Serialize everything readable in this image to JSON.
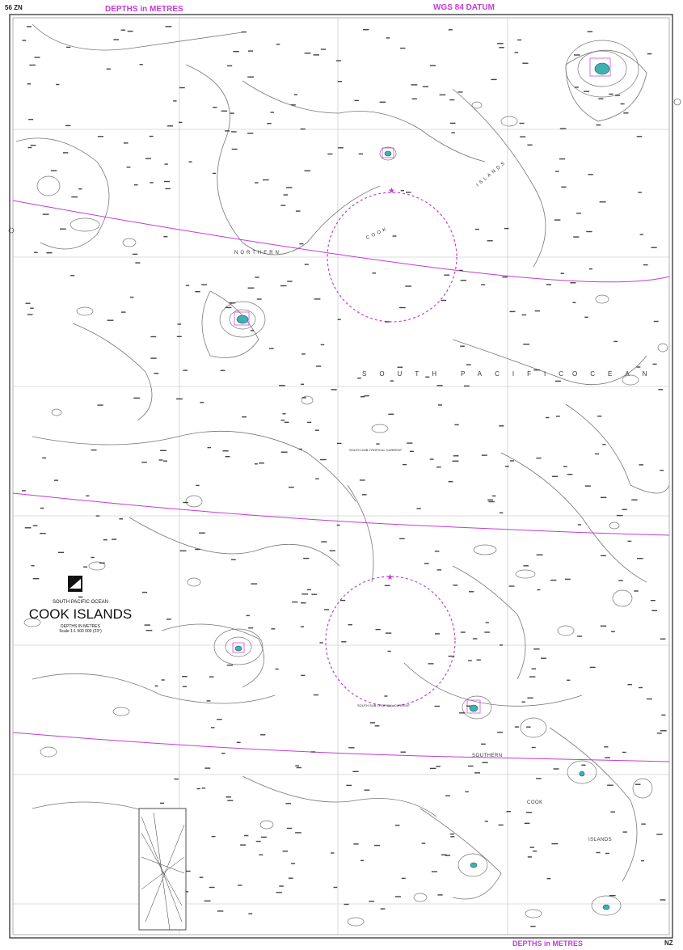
{
  "header": {
    "chart_number": "56 ZN",
    "depths_top": "DEPTHS in METRES",
    "datum": "WGS 84 DATUM",
    "depths_bottom": "DEPTHS in METRES",
    "chart_number_bottom": "NZ"
  },
  "title_block": {
    "region": "SOUTH PACIFIC OCEAN",
    "title": "COOK ISLANDS",
    "depths": "DEPTHS IN METRES",
    "scale": "Scale 1:1 500 000 (23°)"
  },
  "ocean_labels": {
    "south": "SOUTH",
    "pacific": "PACIFIC",
    "ocean": "OCEAN"
  },
  "group_labels": {
    "northern": "NORTHERN",
    "cook_north": "COOK",
    "islands_north": "ISLANDS",
    "southern": "SOUTHERN",
    "cook_south": "COOK",
    "islands_south": "ISLANDS"
  },
  "current_labels": {
    "current_1": "SOUTH SUB-TROPICAL CURRENT",
    "current_2": "SOUTH SUB-TROPICAL CURRENT"
  },
  "colors": {
    "magenta": "#c23bd6",
    "land": "#3fb0b4",
    "contour": "#777777",
    "grid": "#bbbbbb"
  }
}
